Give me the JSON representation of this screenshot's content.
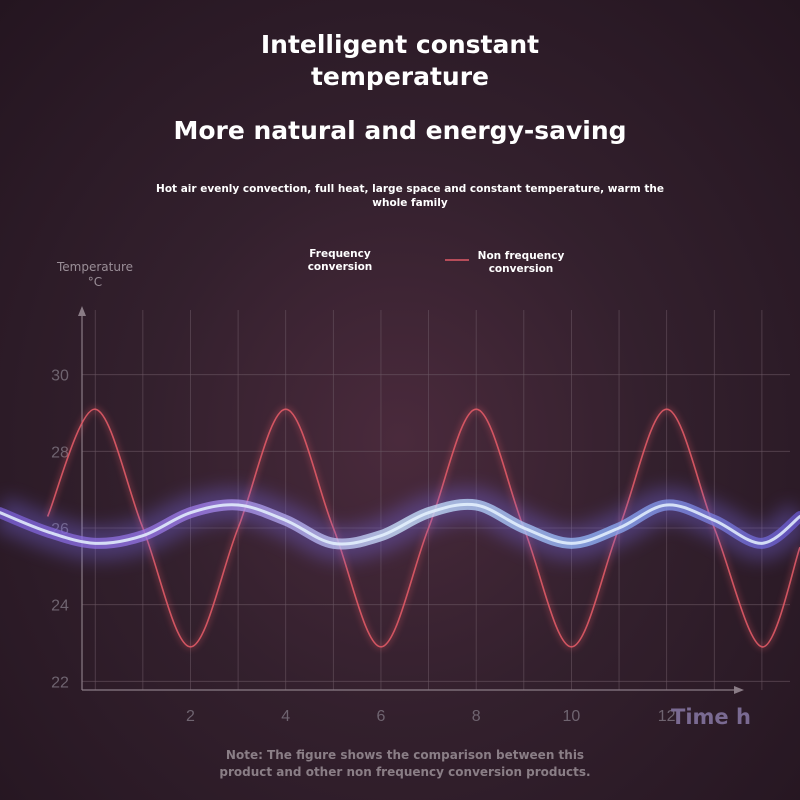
{
  "header": {
    "title_line1": "Intelligent constant",
    "title_line2": "temperature",
    "subtitle": "More natural and energy-saving",
    "description_line1": "Hot air evenly convection, full heat, large space and constant temperature, warm the",
    "description_line2": "whole family"
  },
  "legend": {
    "freq_line1": "Frequency",
    "freq_line2": "conversion",
    "nonfreq_line1": "Non frequency",
    "nonfreq_line2": "conversion"
  },
  "axes": {
    "y_title_line1": "Temperature",
    "y_title_line2": "°C",
    "x_title": "Time h"
  },
  "note": {
    "line1": "Note: The figure shows the comparison between this",
    "line2": "product and other non frequency conversion products."
  },
  "colors": {
    "frequency": "#8fb8f5",
    "frequency_glow": "#7b6cf0",
    "non_frequency": "#e05a66",
    "grid": "#6a5662",
    "axis": "#8a7c86",
    "tick_text": "#6f6470"
  },
  "chart_data": {
    "type": "line",
    "x_ticks": [
      2,
      4,
      6,
      8,
      10,
      12
    ],
    "y_ticks": [
      22,
      24,
      26,
      28,
      30
    ],
    "xlim": [
      -2,
      14.8
    ],
    "ylim": [
      20,
      32
    ],
    "grid": true,
    "legend_position": "top-center",
    "series": [
      {
        "name": "Frequency conversion",
        "x": [
          -2,
          -1,
          0,
          1,
          2,
          3,
          4,
          5,
          6,
          7,
          8,
          9,
          10,
          11,
          12,
          13,
          14,
          14.8
        ],
        "y": [
          26.4,
          25.9,
          25.6,
          25.8,
          26.4,
          26.6,
          26.2,
          25.6,
          25.8,
          26.4,
          26.6,
          26.0,
          25.6,
          26.0,
          26.6,
          26.2,
          25.6,
          26.3
        ]
      },
      {
        "name": "Non frequency conversion",
        "x": [
          -1,
          0,
          1,
          2,
          3,
          4,
          5,
          6,
          7,
          8,
          9,
          10,
          11,
          12,
          13,
          14,
          14.8
        ],
        "y": [
          26.3,
          29.1,
          26.0,
          22.9,
          26.0,
          29.1,
          26.0,
          22.9,
          26.0,
          29.1,
          26.0,
          22.9,
          26.0,
          29.1,
          26.0,
          22.9,
          25.5
        ]
      }
    ]
  }
}
